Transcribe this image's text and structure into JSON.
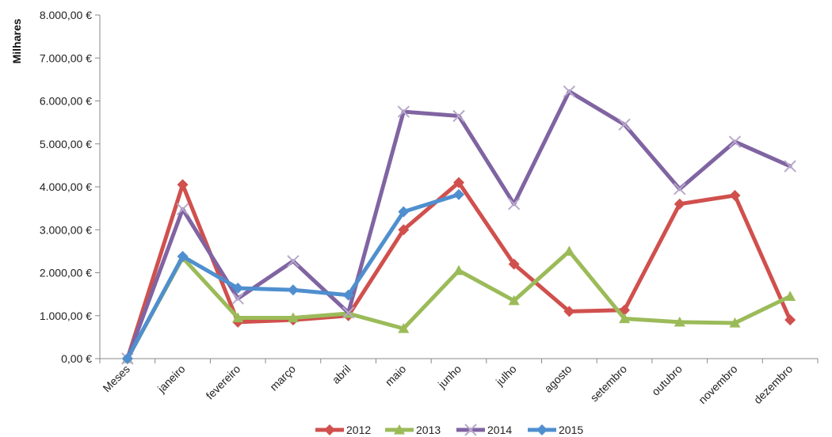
{
  "chart_data": {
    "type": "line",
    "title": "",
    "xlabel": "",
    "ylabel": "Milhares",
    "ylim": [
      0,
      8000
    ],
    "yticks": [
      0,
      1000,
      2000,
      3000,
      4000,
      5000,
      6000,
      7000,
      8000
    ],
    "ytick_labels": [
      "0,00 €",
      "1.000,00 €",
      "2.000,00 €",
      "3.000,00 €",
      "4.000,00 €",
      "5.000,00 €",
      "6.000,00 €",
      "7.000,00 €",
      "8.000,00 €"
    ],
    "categories": [
      "Meses",
      "janeiro",
      "fevereiro",
      "março",
      "abril",
      "maio",
      "junho",
      "julho",
      "agosto",
      "setembro",
      "outubro",
      "novembro",
      "dezembro"
    ],
    "grid": false,
    "legend_position": "bottom",
    "series": [
      {
        "name": "2012",
        "color": "#d0504d",
        "marker": "diamond",
        "values": [
          0,
          4050,
          850,
          900,
          1000,
          3000,
          4100,
          2200,
          1100,
          1130,
          3600,
          3800,
          900
        ]
      },
      {
        "name": "2013",
        "color": "#9bbb59",
        "marker": "triangle",
        "values": [
          0,
          2350,
          950,
          950,
          1050,
          700,
          2050,
          1350,
          2500,
          930,
          850,
          830,
          1450
        ]
      },
      {
        "name": "2014",
        "color": "#8064a2",
        "marker": "x",
        "values": [
          0,
          3480,
          1400,
          2270,
          1070,
          5750,
          5650,
          3600,
          6220,
          5450,
          3950,
          5050,
          4480
        ]
      },
      {
        "name": "2015",
        "color": "#4f8fcf",
        "marker": "diamond",
        "values": [
          0,
          2380,
          1640,
          1600,
          1480,
          3420,
          3820,
          null,
          null,
          null,
          null,
          null,
          null
        ]
      }
    ]
  }
}
